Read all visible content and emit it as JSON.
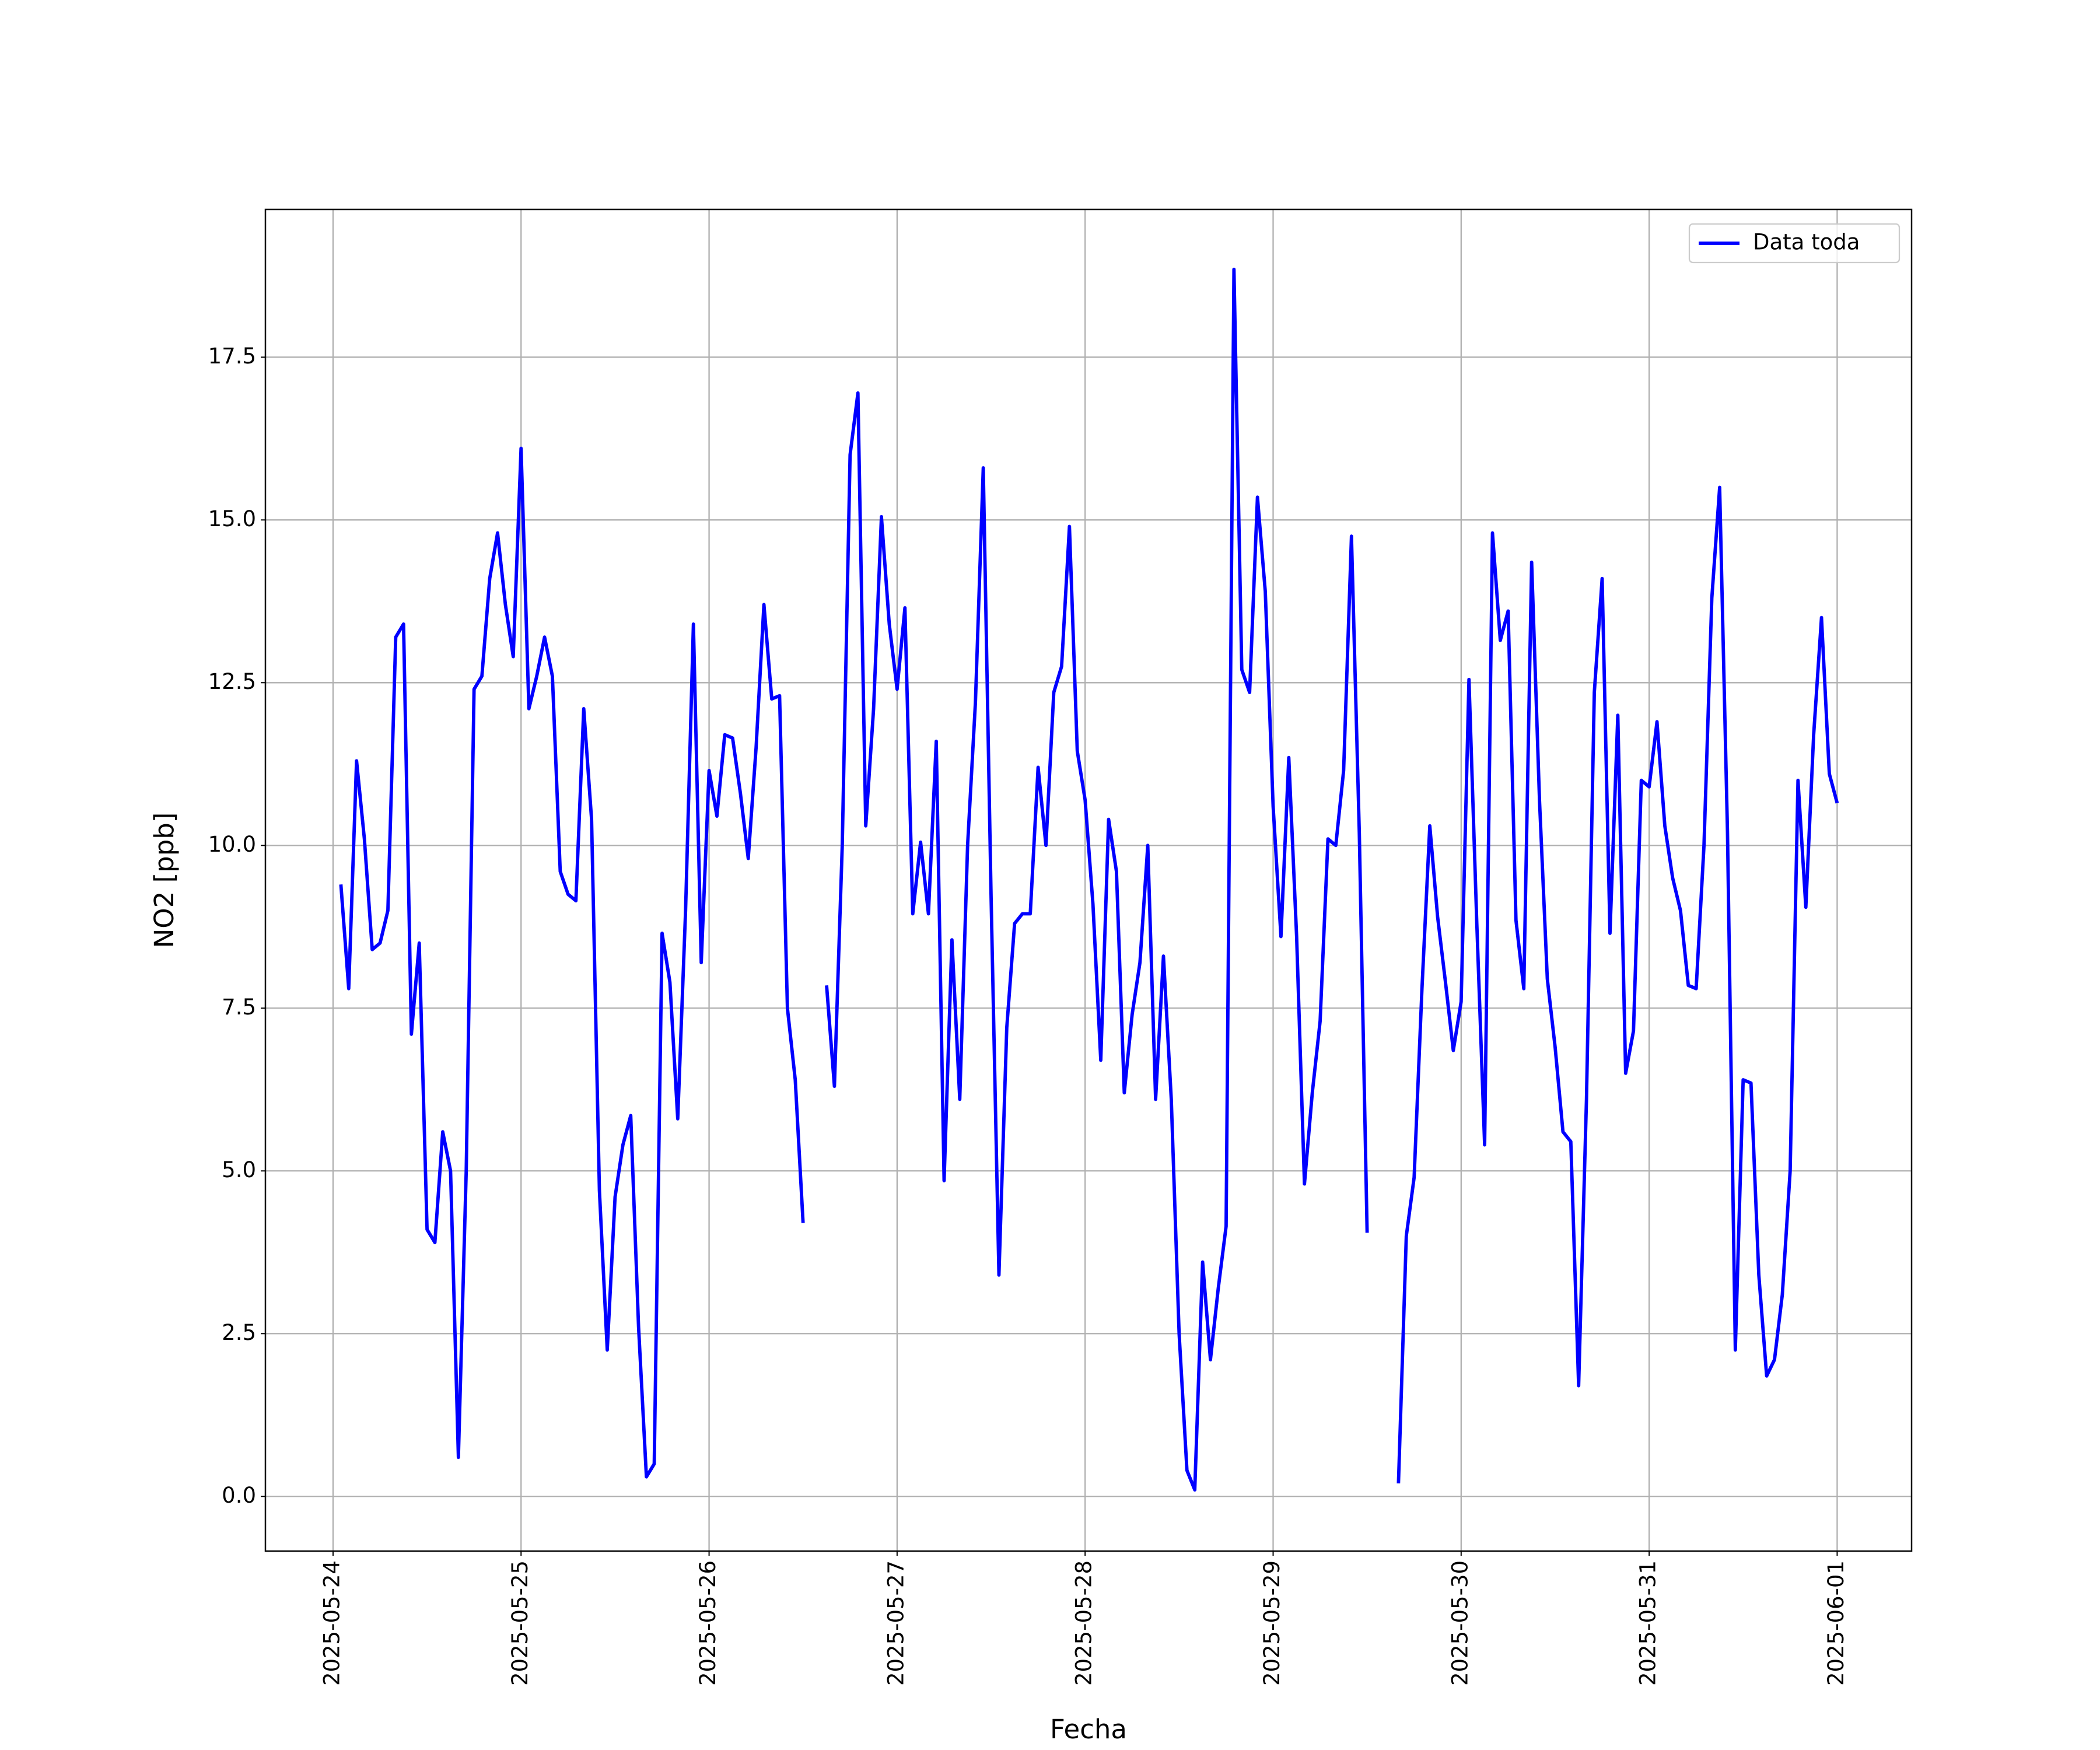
{
  "chart_data": {
    "type": "line",
    "x_label": "Fecha",
    "y_label": "NO2 [ppb]",
    "x": [
      "2025-05-24 01:00",
      "2025-05-24 02:00",
      "2025-05-24 03:00",
      "2025-05-24 04:00",
      "2025-05-24 05:00",
      "2025-05-24 06:00",
      "2025-05-24 07:00",
      "2025-05-24 08:00",
      "2025-05-24 09:00",
      "2025-05-24 10:00",
      "2025-05-24 11:00",
      "2025-05-24 12:00",
      "2025-05-24 13:00",
      "2025-05-24 14:00",
      "2025-05-24 15:00",
      "2025-05-24 16:00",
      "2025-05-24 17:00",
      "2025-05-24 18:00",
      "2025-05-24 19:00",
      "2025-05-24 20:00",
      "2025-05-24 21:00",
      "2025-05-24 22:00",
      "2025-05-24 23:00",
      "2025-05-25 00:00",
      "2025-05-25 01:00",
      "2025-05-25 02:00",
      "2025-05-25 03:00",
      "2025-05-25 04:00",
      "2025-05-25 05:00",
      "2025-05-25 06:00",
      "2025-05-25 07:00",
      "2025-05-25 08:00",
      "2025-05-25 09:00",
      "2025-05-25 10:00",
      "2025-05-25 11:00",
      "2025-05-25 12:00",
      "2025-05-25 13:00",
      "2025-05-25 14:00",
      "2025-05-25 15:00",
      "2025-05-25 16:00",
      "2025-05-25 17:00",
      "2025-05-25 18:00",
      "2025-05-25 19:00",
      "2025-05-25 20:00",
      "2025-05-25 21:00",
      "2025-05-25 22:00",
      "2025-05-25 23:00",
      "2025-05-26 00:00",
      "2025-05-26 01:00",
      "2025-05-26 02:00",
      "2025-05-26 03:00",
      "2025-05-26 04:00",
      "2025-05-26 05:00",
      "2025-05-26 06:00",
      "2025-05-26 07:00",
      "2025-05-26 08:00",
      "2025-05-26 09:00",
      "2025-05-26 10:00",
      "2025-05-26 11:00",
      "2025-05-26 12:00",
      "2025-05-26 13:00",
      "2025-05-26 14:00",
      "2025-05-26 15:00",
      "2025-05-26 16:00",
      "2025-05-26 17:00",
      "2025-05-26 18:00",
      "2025-05-26 19:00",
      "2025-05-26 20:00",
      "2025-05-26 21:00",
      "2025-05-26 22:00",
      "2025-05-26 23:00",
      "2025-05-27 00:00",
      "2025-05-27 01:00",
      "2025-05-27 02:00",
      "2025-05-27 03:00",
      "2025-05-27 04:00",
      "2025-05-27 05:00",
      "2025-05-27 06:00",
      "2025-05-27 07:00",
      "2025-05-27 08:00",
      "2025-05-27 09:00",
      "2025-05-27 10:00",
      "2025-05-27 11:00",
      "2025-05-27 12:00",
      "2025-05-27 13:00",
      "2025-05-27 14:00",
      "2025-05-27 15:00",
      "2025-05-27 16:00",
      "2025-05-27 17:00",
      "2025-05-27 18:00",
      "2025-05-27 19:00",
      "2025-05-27 20:00",
      "2025-05-27 21:00",
      "2025-05-27 22:00",
      "2025-05-27 23:00",
      "2025-05-28 00:00",
      "2025-05-28 01:00",
      "2025-05-28 02:00",
      "2025-05-28 03:00",
      "2025-05-28 04:00",
      "2025-05-28 05:00",
      "2025-05-28 06:00",
      "2025-05-28 07:00",
      "2025-05-28 08:00",
      "2025-05-28 09:00",
      "2025-05-28 10:00",
      "2025-05-28 11:00",
      "2025-05-28 12:00",
      "2025-05-28 13:00",
      "2025-05-28 14:00",
      "2025-05-28 15:00",
      "2025-05-28 16:00",
      "2025-05-28 17:00",
      "2025-05-28 18:00",
      "2025-05-28 19:00",
      "2025-05-28 20:00",
      "2025-05-28 21:00",
      "2025-05-28 22:00",
      "2025-05-28 23:00",
      "2025-05-29 00:00",
      "2025-05-29 01:00",
      "2025-05-29 02:00",
      "2025-05-29 03:00",
      "2025-05-29 04:00",
      "2025-05-29 05:00",
      "2025-05-29 06:00",
      "2025-05-29 07:00",
      "2025-05-29 08:00",
      "2025-05-29 09:00",
      "2025-05-29 10:00",
      "2025-05-29 11:00",
      "2025-05-29 12:00",
      "2025-05-29 13:00",
      "2025-05-29 14:00",
      "2025-05-29 15:00",
      "2025-05-29 16:00",
      "2025-05-29 17:00",
      "2025-05-29 18:00",
      "2025-05-29 19:00",
      "2025-05-29 20:00",
      "2025-05-29 21:00",
      "2025-05-29 22:00",
      "2025-05-29 23:00",
      "2025-05-30 00:00",
      "2025-05-30 01:00",
      "2025-05-30 02:00",
      "2025-05-30 03:00",
      "2025-05-30 04:00",
      "2025-05-30 05:00",
      "2025-05-30 06:00",
      "2025-05-30 07:00",
      "2025-05-30 08:00",
      "2025-05-30 09:00",
      "2025-05-30 10:00",
      "2025-05-30 11:00",
      "2025-05-30 12:00",
      "2025-05-30 13:00",
      "2025-05-30 14:00",
      "2025-05-30 15:00",
      "2025-05-30 16:00",
      "2025-05-30 17:00",
      "2025-05-30 18:00",
      "2025-05-30 19:00",
      "2025-05-30 20:00",
      "2025-05-30 21:00",
      "2025-05-30 22:00",
      "2025-05-30 23:00",
      "2025-05-31 00:00",
      "2025-05-31 01:00",
      "2025-05-31 02:00",
      "2025-05-31 03:00",
      "2025-05-31 04:00",
      "2025-05-31 05:00",
      "2025-05-31 06:00",
      "2025-05-31 07:00",
      "2025-05-31 08:00",
      "2025-05-31 09:00",
      "2025-05-31 10:00",
      "2025-05-31 11:00",
      "2025-05-31 12:00",
      "2025-05-31 13:00",
      "2025-05-31 14:00",
      "2025-05-31 15:00",
      "2025-05-31 16:00",
      "2025-05-31 17:00",
      "2025-05-31 18:00",
      "2025-05-31 19:00",
      "2025-05-31 20:00",
      "2025-05-31 21:00",
      "2025-05-31 22:00",
      "2025-05-31 23:00",
      "2025-06-01 00:00"
    ],
    "series": [
      {
        "name": "Data toda",
        "color": "#0000ff",
        "values": [
          9.4,
          7.8,
          11.3,
          10.1,
          8.4,
          8.5,
          9.0,
          13.2,
          13.4,
          7.1,
          8.5,
          4.1,
          3.9,
          5.6,
          5.0,
          0.6,
          5.0,
          12.4,
          12.6,
          14.1,
          14.8,
          13.7,
          12.9,
          16.1,
          12.1,
          12.6,
          13.2,
          12.6,
          9.6,
          9.25,
          9.15,
          12.1,
          10.4,
          4.7,
          2.25,
          4.6,
          5.4,
          5.85,
          2.6,
          0.3,
          0.5,
          8.65,
          7.9,
          5.8,
          9.0,
          13.4,
          8.2,
          11.15,
          10.45,
          11.7,
          11.65,
          10.8,
          9.8,
          11.5,
          13.7,
          12.25,
          12.3,
          7.5,
          6.4,
          4.2,
          null,
          null,
          7.85,
          6.3,
          10.0,
          16.0,
          16.95,
          10.3,
          12.1,
          15.05,
          13.4,
          12.4,
          13.65,
          8.95,
          10.05,
          8.95,
          11.6,
          4.85,
          8.55,
          6.1,
          10.0,
          12.2,
          15.8,
          9.2,
          3.4,
          7.2,
          8.8,
          8.95,
          8.95,
          11.2,
          10.0,
          12.35,
          12.75,
          14.9,
          11.45,
          10.7,
          9.1,
          6.7,
          10.4,
          9.6,
          6.2,
          7.4,
          8.2,
          10.0,
          6.1,
          8.3,
          6.1,
          2.5,
          0.4,
          0.1,
          3.6,
          2.1,
          3.2,
          4.15,
          18.85,
          12.7,
          12.35,
          15.35,
          13.9,
          10.6,
          8.6,
          11.35,
          8.6,
          4.8,
          6.2,
          7.3,
          10.1,
          10.0,
          11.15,
          14.75,
          10.2,
          4.05,
          null,
          null,
          null,
          0.2,
          4.0,
          4.9,
          7.8,
          10.3,
          8.9,
          7.9,
          6.85,
          7.6,
          12.55,
          8.8,
          5.4,
          14.8,
          13.15,
          13.6,
          8.85,
          7.8,
          14.35,
          10.7,
          7.95,
          6.9,
          5.6,
          5.45,
          1.7,
          6.1,
          12.35,
          14.1,
          8.65,
          12.0,
          6.5,
          7.15,
          11.0,
          10.9,
          11.9,
          10.3,
          9.5,
          9.0,
          7.85,
          7.8,
          10.0,
          13.8,
          15.5,
          10.2,
          2.25,
          6.4,
          6.35,
          3.4,
          1.85,
          2.1,
          3.1,
          5.0,
          11.0,
          9.05,
          11.7,
          13.5,
          11.1,
          10.65
        ]
      }
    ],
    "xlim": [
      "2025-05-23 15:22",
      "2025-06-01 09:30"
    ],
    "xticks": [
      "2025-05-24",
      "2025-05-25",
      "2025-05-26",
      "2025-05-27",
      "2025-05-28",
      "2025-05-29",
      "2025-05-30",
      "2025-05-31",
      "2025-06-01"
    ],
    "ylim": [
      -0.84,
      19.77
    ],
    "yticks": [
      {
        "value": 0,
        "label": "0.0"
      },
      2.5,
      {
        "value": 5,
        "label": "5.0"
      },
      7.5,
      {
        "value": 10,
        "label": "10.0"
      },
      12.5,
      {
        "value": 15,
        "label": "15.0"
      },
      17.5
    ],
    "grid": true,
    "legend": "upper right"
  }
}
